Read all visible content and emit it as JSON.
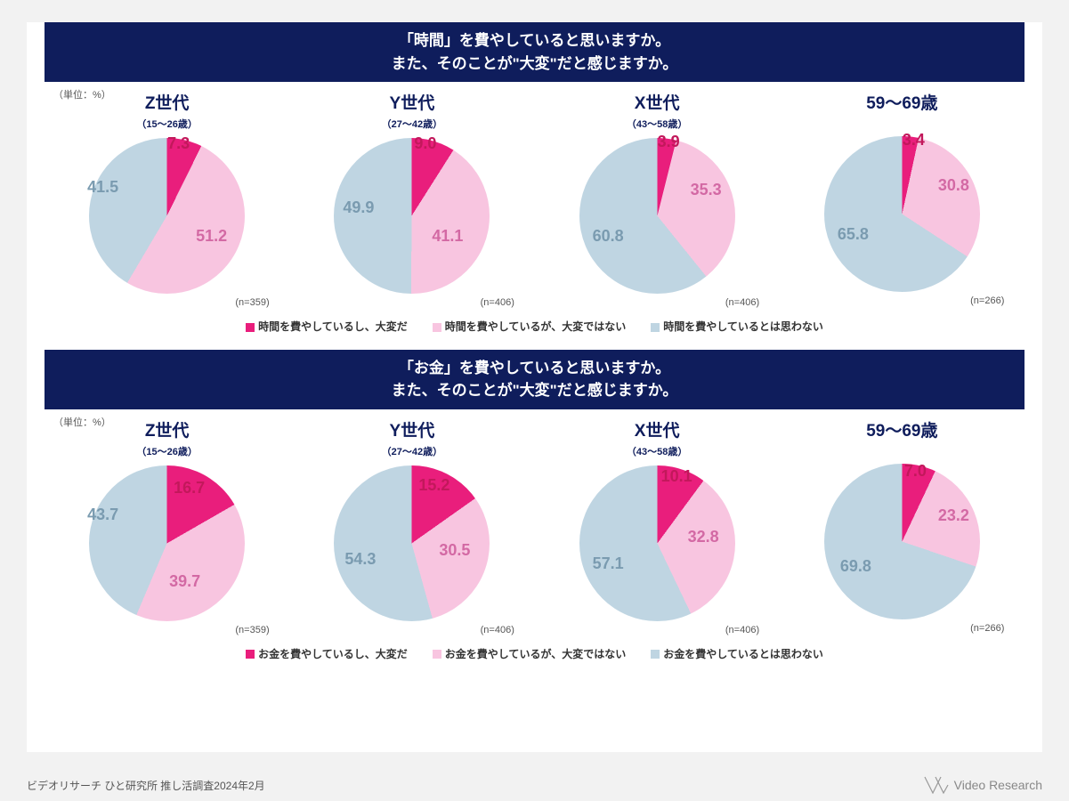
{
  "colors": {
    "title_bg": "#0f1d5c",
    "title_fg": "#ffffff",
    "c1": "#e91e7c",
    "c2": "#f8c5e0",
    "c3": "#bfd5e2",
    "v1_text": "#c2185b",
    "v2_text": "#d369a4",
    "v3_text": "#7a9bb0"
  },
  "unit_label": "（単位：%）",
  "sections": [
    {
      "title_l1": "「時間」を費やしていると思いますか。",
      "title_l2": "また、そのことが\"大変\"だと感じますか。",
      "legend": [
        "時間を費やしているし、大変だ",
        "時間を費やしているが、大変ではない",
        "時間を費やしているとは思わない"
      ],
      "charts": [
        {
          "gen": "Z世代",
          "sub": "（15〜26歳）",
          "n": "(n=359)",
          "v": [
            7.3,
            51.2,
            41.5
          ],
          "pos": [
            {
              "t": -4,
              "l": 88
            },
            {
              "t": 100,
              "l": 120
            },
            {
              "t": 45,
              "l": -2
            }
          ]
        },
        {
          "gen": "Y世代",
          "sub": "（27〜42歳）",
          "n": "(n=406)",
          "v": [
            9.0,
            41.1,
            49.9
          ],
          "pos": [
            {
              "t": -4,
              "l": 90
            },
            {
              "t": 100,
              "l": 110
            },
            {
              "t": 68,
              "l": 10
            }
          ]
        },
        {
          "gen": "X世代",
          "sub": "（43〜58歳）",
          "n": "(n=406)",
          "v": [
            3.9,
            35.3,
            60.8
          ],
          "pos": [
            {
              "t": -6,
              "l": 88
            },
            {
              "t": 48,
              "l": 125
            },
            {
              "t": 100,
              "l": 15
            }
          ]
        },
        {
          "gen": "59〜69歳",
          "sub": "",
          "n": "(n=266)",
          "v": [
            3.4,
            30.8,
            65.8
          ],
          "pos": [
            {
              "t": -6,
              "l": 88
            },
            {
              "t": 45,
              "l": 128
            },
            {
              "t": 100,
              "l": 15
            }
          ]
        }
      ]
    },
    {
      "title_l1": "「お金」を費やしていると思いますか。",
      "title_l2": "また、そのことが\"大変\"だと感じますか。",
      "legend": [
        "お金を費やしているし、大変だ",
        "お金を費やしているが、大変ではない",
        "お金を費やしているとは思わない"
      ],
      "charts": [
        {
          "gen": "Z世代",
          "sub": "（15〜26歳）",
          "n": "(n=359)",
          "v": [
            16.7,
            39.7,
            43.7
          ],
          "pos": [
            {
              "t": 15,
              "l": 95
            },
            {
              "t": 120,
              "l": 90
            },
            {
              "t": 45,
              "l": -2
            }
          ]
        },
        {
          "gen": "Y世代",
          "sub": "（27〜42歳）",
          "n": "(n=406)",
          "v": [
            15.2,
            30.5,
            54.3
          ],
          "pos": [
            {
              "t": 12,
              "l": 95
            },
            {
              "t": 85,
              "l": 118
            },
            {
              "t": 95,
              "l": 12
            }
          ]
        },
        {
          "gen": "X世代",
          "sub": "（43〜58歳）",
          "n": "(n=406)",
          "v": [
            10.1,
            32.8,
            57.1
          ],
          "pos": [
            {
              "t": 2,
              "l": 92
            },
            {
              "t": 70,
              "l": 122
            },
            {
              "t": 100,
              "l": 15
            }
          ]
        },
        {
          "gen": "59〜69歳",
          "sub": "",
          "n": "(n=266)",
          "v": [
            7.0,
            23.2,
            69.8
          ],
          "pos": [
            {
              "t": -2,
              "l": 90
            },
            {
              "t": 48,
              "l": 128
            },
            {
              "t": 105,
              "l": 18
            }
          ]
        }
      ]
    }
  ],
  "footer_left": "ビデオリサーチ ひと研究所 推し活調査2024年2月",
  "footer_right": "Video Research"
}
